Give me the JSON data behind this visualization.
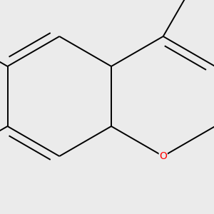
{
  "bg_color": "#ebebeb",
  "bond_color": "#000000",
  "cl_color": "#00bb00",
  "o_color": "#ff0000",
  "h_color": "#606060",
  "line_width": 1.4,
  "dbo": 0.06,
  "font_size_atoms": 10,
  "font_size_h": 8,
  "font_size_cl": 10
}
